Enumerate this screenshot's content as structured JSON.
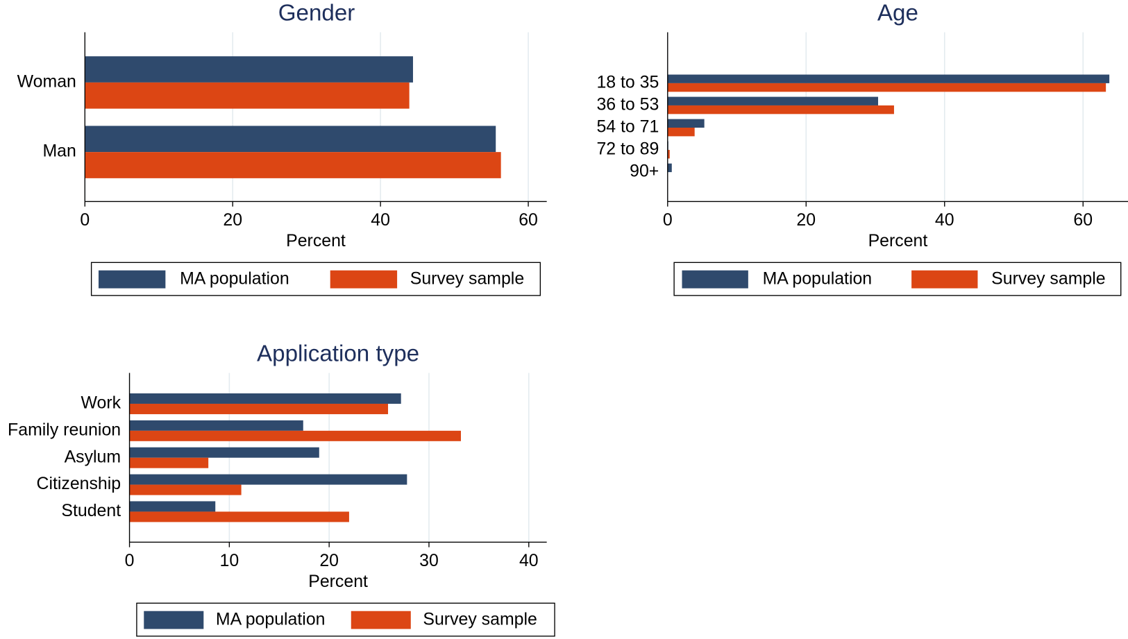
{
  "chart_data": [
    {
      "type": "bar",
      "orientation": "horizontal",
      "title": "Gender",
      "xlabel": "Percent",
      "categories": [
        "Woman",
        "Man"
      ],
      "series": [
        {
          "name": "MA population",
          "color": "#2f4a6d",
          "values": [
            44.4,
            55.6
          ]
        },
        {
          "name": "Survey sample",
          "color": "#dc4614",
          "values": [
            43.9,
            56.3
          ]
        }
      ],
      "xlim": [
        0,
        62.5
      ],
      "xticks": [
        0,
        20,
        40,
        60
      ],
      "grid": true
    },
    {
      "type": "bar",
      "orientation": "horizontal",
      "title": "Age",
      "xlabel": "Percent",
      "categories": [
        "18 to 35",
        "36 to 53",
        "54 to 71",
        "72 to 89",
        "90+"
      ],
      "series": [
        {
          "name": "MA population",
          "color": "#2f4a6d",
          "values": [
            63.8,
            30.4,
            5.3,
            0.1,
            0.6
          ]
        },
        {
          "name": "Survey sample",
          "color": "#dc4614",
          "values": [
            63.3,
            32.7,
            3.9,
            0.3,
            0
          ]
        }
      ],
      "xlim": [
        0,
        66.5
      ],
      "xticks": [
        0,
        20,
        40,
        60
      ],
      "grid": true
    },
    {
      "type": "bar",
      "orientation": "horizontal",
      "title": "Application type",
      "xlabel": "Percent",
      "categories": [
        "Work",
        "Family reunion",
        "Asylum",
        "Citizenship",
        "Student"
      ],
      "series": [
        {
          "name": "MA population",
          "color": "#2f4a6d",
          "values": [
            27.2,
            17.4,
            19.0,
            27.8,
            8.6
          ]
        },
        {
          "name": "Survey sample",
          "color": "#dc4614",
          "values": [
            25.9,
            33.2,
            7.9,
            11.2,
            22.0
          ]
        }
      ],
      "xlim": [
        0,
        41.8
      ],
      "xticks": [
        0,
        10,
        20,
        30,
        40
      ],
      "grid": true
    }
  ]
}
